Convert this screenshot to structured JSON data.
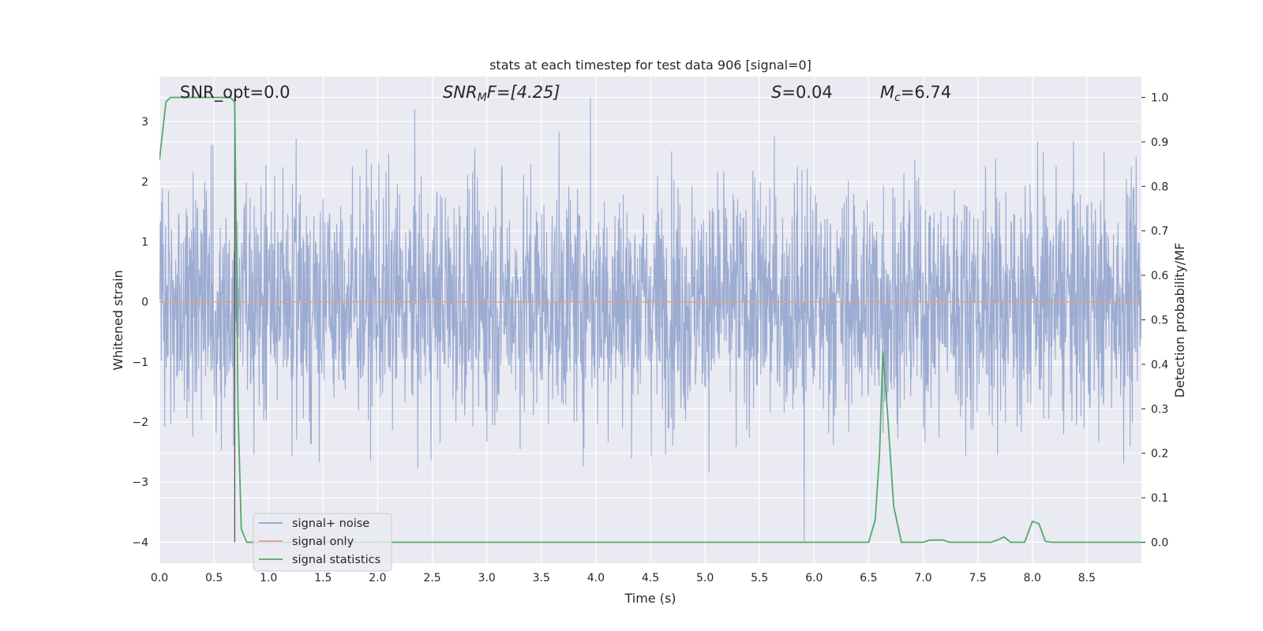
{
  "chart_data": {
    "type": "line",
    "title": "stats at each timestep for test data 906 [signal=0]",
    "xlabel": "Time (s)",
    "ylabel": "Whitened strain",
    "y2label": "Detection probability/MF",
    "xlim": [
      0,
      9.0
    ],
    "ylim": [
      -4.35,
      3.75
    ],
    "y2lim": [
      -0.047,
      1.047
    ],
    "xticks": [
      0.0,
      0.5,
      1.0,
      1.5,
      2.0,
      2.5,
      3.0,
      3.5,
      4.0,
      4.5,
      5.0,
      5.5,
      6.0,
      6.5,
      7.0,
      7.5,
      8.0,
      8.5
    ],
    "xtick_labels": [
      "0.0",
      "0.5",
      "1.0",
      "1.5",
      "2.0",
      "2.5",
      "3.0",
      "3.5",
      "4.0",
      "4.5",
      "5.0",
      "5.5",
      "6.0",
      "6.5",
      "7.0",
      "7.5",
      "8.0",
      "8.5"
    ],
    "yticks": [
      3,
      2,
      1,
      0,
      -1,
      -2,
      -3,
      -4
    ],
    "ytick_labels": [
      "3",
      "2",
      "1",
      "0",
      "−1",
      "−2",
      "−3",
      "−4"
    ],
    "y2ticks": [
      1.0,
      0.9,
      0.8,
      0.7,
      0.6,
      0.5,
      0.4,
      0.3,
      0.2,
      0.1,
      0.0
    ],
    "y2tick_labels": [
      "1.0",
      "0.9",
      "0.8",
      "0.7",
      "0.6",
      "0.5",
      "0.4",
      "0.3",
      "0.2",
      "0.1",
      "0.0"
    ],
    "grid": true,
    "legend_position": "lower-left",
    "annotations": {
      "snr_opt": "SNR_opt=0.0",
      "snr_mf_var": "SNR",
      "snr_mf_sub": "M",
      "snr_mf_rest": "F=[4.25]",
      "s_var": "S",
      "s_rest": "=0.04",
      "mc_var": "M",
      "mc_sub": "c",
      "mc_rest": "=6.74"
    },
    "vertical_line_x": 0.69,
    "series": [
      {
        "name": "signal+ noise",
        "color": "#8da0cb",
        "description_values": "whitened noisy strain, ~N(0,1), spikes up to about 3.4 and down to about -4.0 around t=5.9"
      },
      {
        "name": "signal only",
        "color": "#e5a07e",
        "values_constant": 0.0
      },
      {
        "name": "signal statistics",
        "color": "#55a868",
        "axis": "right",
        "x": [
          0.0,
          0.06,
          0.1,
          0.15,
          0.2,
          0.3,
          0.4,
          0.5,
          0.6,
          0.65,
          0.69,
          0.72,
          0.75,
          0.8,
          0.85,
          1.0,
          2.0,
          3.0,
          4.0,
          5.0,
          6.0,
          6.5,
          6.56,
          6.6,
          6.63,
          6.67,
          6.73,
          6.8,
          7.0,
          7.06,
          7.12,
          7.18,
          7.24,
          7.3,
          7.5,
          7.62,
          7.68,
          7.74,
          7.8,
          7.86,
          7.93,
          8.0,
          8.06,
          8.12,
          8.18,
          8.3,
          8.5,
          9.0
        ],
        "y": [
          0.86,
          0.99,
          1.0,
          1.0,
          1.0,
          1.0,
          1.0,
          1.0,
          1.0,
          1.0,
          0.99,
          0.3,
          0.03,
          0.0,
          0.0,
          0.0,
          0.0,
          0.0,
          0.0,
          0.0,
          0.0,
          0.0,
          0.05,
          0.2,
          0.43,
          0.3,
          0.08,
          0.0,
          0.0,
          0.005,
          0.005,
          0.005,
          0.0,
          0.0,
          0.0,
          0.0,
          0.005,
          0.012,
          0.0,
          0.0,
          0.0,
          0.047,
          0.042,
          0.002,
          0.0,
          0.0,
          0.0,
          0.0
        ]
      }
    ]
  }
}
